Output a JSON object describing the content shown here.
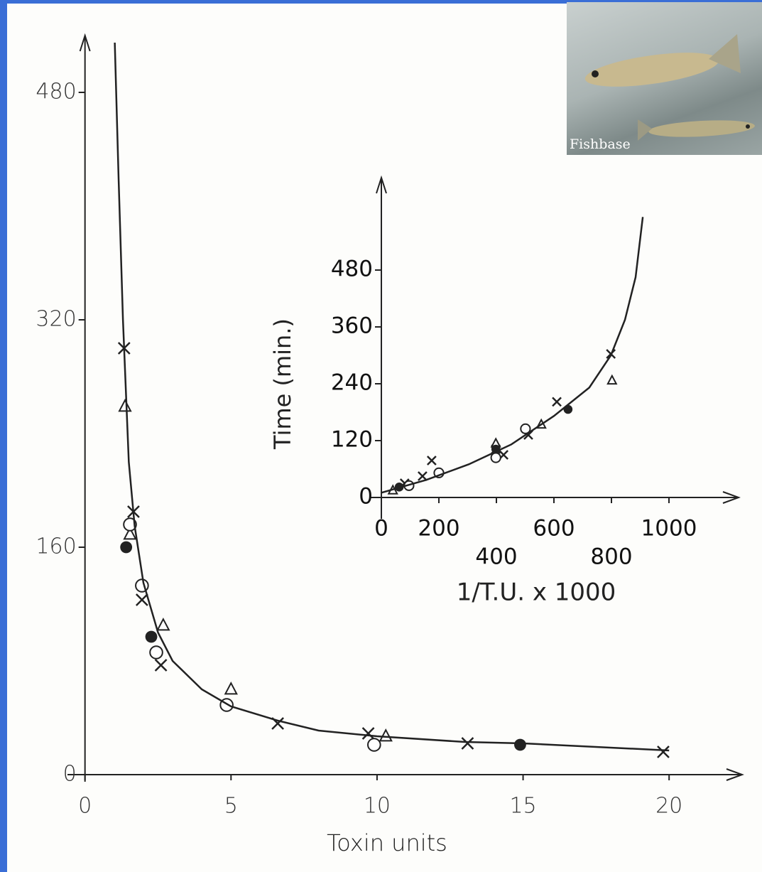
{
  "chart_data": [
    {
      "type": "scatter",
      "xlabel": "Toxin units",
      "xlim": [
        -0.6,
        22.5
      ],
      "ylim": [
        -5,
        520
      ],
      "xticks": [
        0,
        5,
        10,
        15,
        20
      ],
      "yticks": [
        0,
        160,
        320,
        480
      ],
      "series": [
        {
          "style": "cross",
          "color": "#222222",
          "x": [
            1.34,
            1.66,
            1.95,
            2.6,
            6.6,
            9.7,
            13.1,
            19.8
          ],
          "values": [
            300,
            185,
            123,
            77,
            36,
            29,
            22,
            16
          ]
        },
        {
          "style": "triangle",
          "color": "#222222",
          "x": [
            1.37,
            1.54,
            2.68,
            5.0,
            10.3
          ],
          "values": [
            259,
            169,
            105,
            60,
            27
          ]
        },
        {
          "style": "circle",
          "color": "#222222",
          "x": [
            1.54,
            1.95,
            2.44,
            4.85,
            9.9
          ],
          "values": [
            176,
            133,
            86,
            49,
            21
          ]
        },
        {
          "style": "dot",
          "color": "#222222",
          "x": [
            1.41,
            2.27,
            14.9
          ],
          "values": [
            160,
            97,
            21
          ]
        },
        {
          "style": "line",
          "color": "#222222",
          "x": [
            1.02,
            1.15,
            1.3,
            1.5,
            1.7,
            2.0,
            2.5,
            3.0,
            4.0,
            5.0,
            6.6,
            8.0,
            10.0,
            13.0,
            15.0,
            20.0
          ],
          "values": [
            515,
            420,
            320,
            220,
            175,
            135,
            100,
            80,
            60,
            48,
            38,
            31,
            27,
            23,
            22,
            17
          ]
        }
      ]
    },
    {
      "type": "scatter",
      "xlabel": "1/T.U. x 1000",
      "ylabel": "Time (min.)",
      "xlim": [
        -42,
        1242
      ],
      "ylim": [
        -45,
        675
      ],
      "xticks": [
        0,
        200,
        400,
        600,
        800,
        1000
      ],
      "yticks": [
        0,
        120,
        240,
        360,
        480
      ],
      "series": [
        {
          "style": "cross",
          "color": "#222222",
          "x": [
            175,
            398,
            511,
            610,
            798,
            81,
            143,
            425
          ],
          "values": [
            78,
            102,
            132,
            202,
            303,
            30,
            45,
            90
          ]
        },
        {
          "style": "triangle",
          "color": "#222222",
          "x": [
            40,
            398,
            556,
            802
          ],
          "values": [
            15,
            114,
            154,
            247
          ]
        },
        {
          "style": "circle",
          "color": "#222222",
          "x": [
            96,
            200,
            398,
            501
          ],
          "values": [
            25,
            52,
            84,
            145
          ]
        },
        {
          "style": "dot",
          "color": "#222222",
          "x": [
            62,
            398,
            649
          ],
          "values": [
            22,
            102,
            186
          ]
        },
        {
          "style": "line",
          "color": "#222222",
          "x": [
            0,
            156,
            304,
            452,
            600,
            723,
            798,
            847,
            884,
            909
          ],
          "values": [
            10,
            37,
            70,
            112,
            172,
            232,
            300,
            375,
            465,
            592
          ]
        }
      ]
    }
  ],
  "photo": {
    "credit": "Fishbase"
  }
}
